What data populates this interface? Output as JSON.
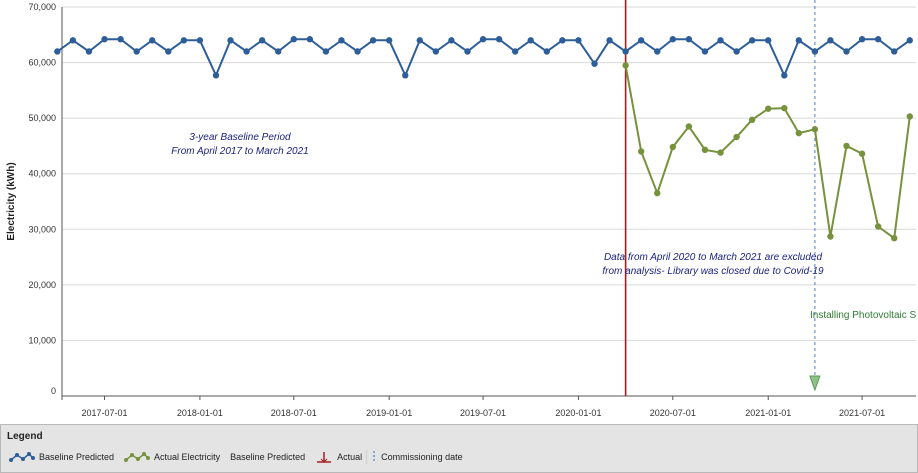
{
  "chart_data": {
    "type": "line",
    "ylabel": "Electricity (kWh)",
    "xlabel": "",
    "ylim": [
      0,
      70000
    ],
    "yticks": [
      0,
      10000,
      20000,
      30000,
      40000,
      50000,
      60000,
      70000
    ],
    "ytick_labels": [
      "0",
      "10,000",
      "20,000",
      "30,000",
      "40,000",
      "50,000",
      "60,000",
      "70,000"
    ],
    "xticks": [
      "2017-07-01",
      "2018-01-01",
      "2018-07-01",
      "2019-01-01",
      "2019-07-01",
      "2020-01-01",
      "2020-07-01",
      "2021-01-01",
      "2021-07-01"
    ],
    "x_range": [
      "2017-04-10",
      "2021-10-13"
    ],
    "grid": "horizontal",
    "series": [
      {
        "name": "Baseline Predicted",
        "color": "#2e5e99",
        "marker": "circle",
        "x": [
          "2017-04-01",
          "2017-05-01",
          "2017-06-01",
          "2017-07-01",
          "2017-08-01",
          "2017-09-01",
          "2017-10-01",
          "2017-11-01",
          "2017-12-01",
          "2018-01-01",
          "2018-02-01",
          "2018-03-01",
          "2018-04-01",
          "2018-05-01",
          "2018-06-01",
          "2018-07-01",
          "2018-08-01",
          "2018-09-01",
          "2018-10-01",
          "2018-11-01",
          "2018-12-01",
          "2019-01-01",
          "2019-02-01",
          "2019-03-01",
          "2019-04-01",
          "2019-05-01",
          "2019-06-01",
          "2019-07-01",
          "2019-08-01",
          "2019-09-01",
          "2019-10-01",
          "2019-11-01",
          "2019-12-01",
          "2020-01-01",
          "2020-02-01",
          "2020-03-01",
          "2020-04-01",
          "2020-05-01",
          "2020-06-01",
          "2020-07-01",
          "2020-08-01",
          "2020-09-01",
          "2020-10-01",
          "2020-11-01",
          "2020-12-01",
          "2021-01-01",
          "2021-02-01",
          "2021-03-01",
          "2021-04-01",
          "2021-05-01",
          "2021-06-01",
          "2021-07-01",
          "2021-08-01",
          "2021-09-01",
          "2021-10-01"
        ],
        "values": [
          62000,
          64000,
          62000,
          64200,
          64200,
          62000,
          64000,
          62000,
          64000,
          64000,
          57700,
          64000,
          62000,
          64000,
          62000,
          64200,
          64200,
          62000,
          64000,
          62000,
          64000,
          64000,
          57700,
          64000,
          62000,
          64000,
          62000,
          64200,
          64200,
          62000,
          64000,
          62000,
          64000,
          64000,
          59800,
          64000,
          62000,
          64000,
          62000,
          64200,
          64200,
          62000,
          64000,
          62000,
          64000,
          64000,
          57700,
          64000,
          62000,
          64000,
          62000,
          64200,
          64200,
          62000,
          64000
        ]
      },
      {
        "name": "Actual Electricity",
        "color": "#76923c",
        "marker": "circle",
        "x": [
          "2020-04-01",
          "2020-05-01",
          "2020-06-01",
          "2020-07-01",
          "2020-08-01",
          "2020-09-01",
          "2020-10-01",
          "2020-11-01",
          "2020-12-01",
          "2021-01-01",
          "2021-02-01",
          "2021-03-01",
          "2021-04-01",
          "2021-05-01",
          "2021-06-01",
          "2021-07-01",
          "2021-08-01",
          "2021-09-01",
          "2021-10-01"
        ],
        "values": [
          59500,
          44000,
          36500,
          44800,
          48500,
          44300,
          43800,
          46600,
          49700,
          51700,
          51800,
          47300,
          48000,
          28700,
          45000,
          43600,
          30500,
          28400,
          50300
        ]
      }
    ],
    "reference_lines": [
      {
        "label": "Baseline Predicted",
        "x": "2020-04-01",
        "color": "#a81e1e",
        "style": "solid"
      },
      {
        "label": "Commissioning date",
        "x": "2021-04-01",
        "color": "#4a7fc8",
        "style": "dashed"
      }
    ],
    "annotations": [
      {
        "id": "baseline-period",
        "lines": [
          "3-year Baseline Period",
          "From April 2017 to March 2021"
        ],
        "color": "#1a237e"
      },
      {
        "id": "covid-note",
        "lines": [
          "Data from April 2020 to March 2021 are excluded",
          "from analysis- Library was closed due to Covid-19"
        ],
        "color": "#1a237e"
      },
      {
        "id": "pv-note",
        "text": "Installing Photovoltaic S",
        "color": "#2e7d32"
      }
    ]
  },
  "legend": {
    "title": "Legend",
    "items": [
      {
        "label": "Baseline Predicted",
        "icon": "blue-line-marker-icon",
        "color": "#2e5e99"
      },
      {
        "label": "Actual Electricity",
        "icon": "green-line-marker-icon",
        "color": "#76923c"
      },
      {
        "label": "Baseline Predicted",
        "icon": "none"
      },
      {
        "label": "Actual",
        "icon": "red-vertical-marker-icon",
        "color": "#a81e1e"
      },
      {
        "label": "Commissioning date",
        "icon": "blue-dashed-line-icon",
        "color": "#4a7fc8"
      }
    ]
  }
}
